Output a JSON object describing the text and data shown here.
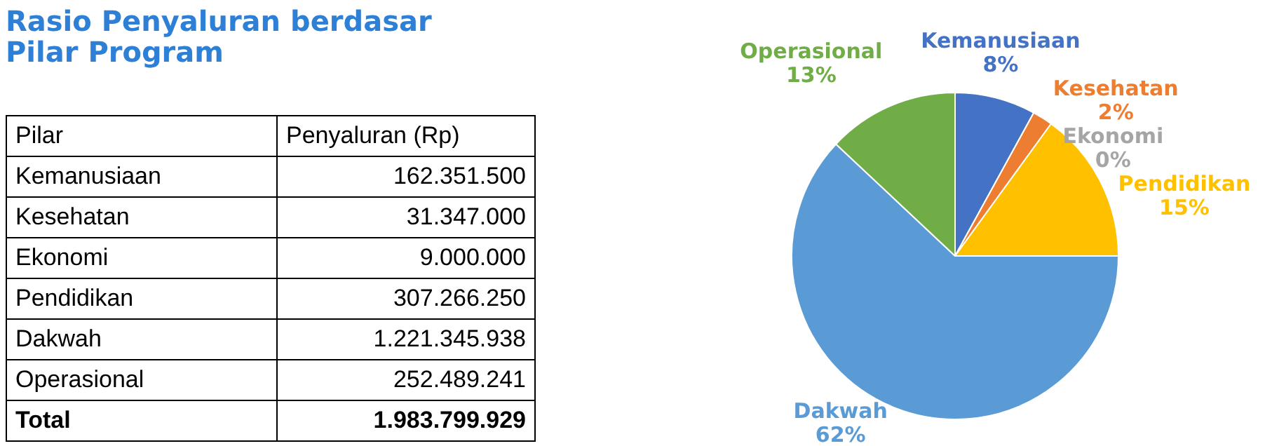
{
  "chart_data": {
    "type": "pie",
    "title": "Rasio Penyaluran berdasar Pilar Program",
    "categories": [
      "Kemanusiaan",
      "Kesehatan",
      "Ekonomi",
      "Pendidikan",
      "Dakwah",
      "Operasional"
    ],
    "values": [
      8,
      2,
      0,
      15,
      62,
      13
    ],
    "value_labels": [
      "8%",
      "2%",
      "0%",
      "15%",
      "62%",
      "13%"
    ],
    "colors": [
      "#4472c4",
      "#ed7d31",
      "#a5a5a5",
      "#ffc000",
      "#5b9bd5",
      "#70ad47"
    ],
    "annotations": [
      "Pilar",
      "Penyaluran (Rp)",
      "162.351.500",
      "31.347.000",
      "9.000.000",
      "307.266.250",
      "1.221.345.938",
      "252.489.241",
      "Total",
      "1.983.799.929"
    ],
    "legend": false
  }
}
